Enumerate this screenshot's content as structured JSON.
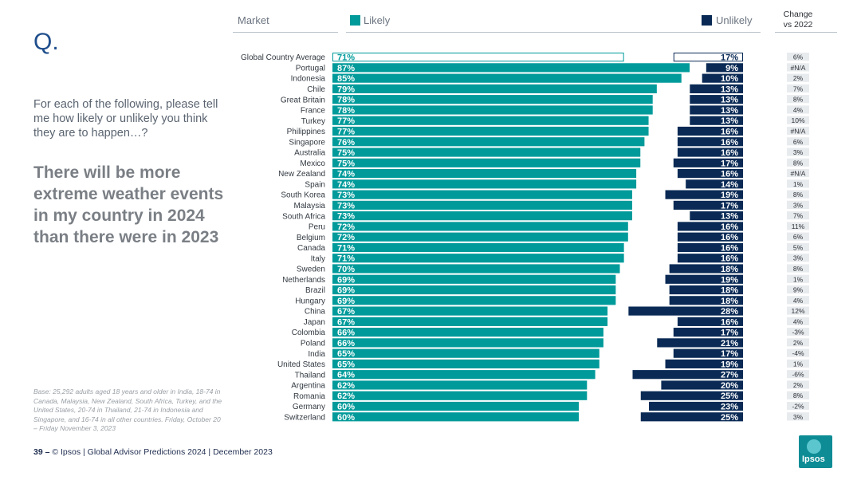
{
  "slide": {
    "q_label": "Q.",
    "intro": "For each of the following, please tell me how likely or unlikely you think they are to happen…?",
    "statement": "There will be more extreme weather events in my country in 2024 than there were in 2023",
    "base_note": "Base: 25,292 adults aged 18 years and older in India, 18-74 in Canada, Malaysia, New Zealand, South Africa, Turkey, and the United States, 20-74 in Thailand, 21-74 in Indonesia and Singapore, and 16-74 in all other countries. Friday, October 20 – Friday November 3, 2023",
    "footer_page": "39 –",
    "footer_text": "© Ipsos | Global Advisor Predictions 2024 | December 2023",
    "logo_text": "Ipsos"
  },
  "colors": {
    "likely": "#009a9a",
    "unlikely": "#0a2a55"
  },
  "chart_data": {
    "type": "bar",
    "headers": {
      "market": "Market",
      "likely": "Likely",
      "unlikely": "Unlikely",
      "change": "Change vs 2022"
    },
    "series": [
      {
        "name": "Likely",
        "values": [
          71,
          87,
          85,
          79,
          78,
          78,
          77,
          77,
          76,
          75,
          75,
          74,
          74,
          73,
          73,
          73,
          72,
          72,
          71,
          71,
          70,
          69,
          69,
          69,
          67,
          67,
          66,
          66,
          65,
          65,
          64,
          62,
          62,
          60,
          60
        ],
        "labels": [
          "71%",
          "87%",
          "85%",
          "79%",
          "78%",
          "78%",
          "77%",
          "77%",
          "76%",
          "75%",
          "75%",
          "74%",
          "74%",
          "73%",
          "73%",
          "73%",
          "72%",
          "72%",
          "71%",
          "71%",
          "70%",
          "69%",
          "69%",
          "69%",
          "67%",
          "67%",
          "66%",
          "66%",
          "65%",
          "65%",
          "64%",
          "62%",
          "62%",
          "60%",
          "60%"
        ]
      },
      {
        "name": "Unlikely",
        "values": [
          17,
          9,
          10,
          13,
          13,
          13,
          13,
          16,
          16,
          16,
          17,
          16,
          14,
          19,
          17,
          13,
          16,
          16,
          16,
          16,
          18,
          19,
          18,
          18,
          28,
          16,
          17,
          21,
          17,
          19,
          27,
          20,
          25,
          23,
          25
        ],
        "labels": [
          "17%",
          "9%",
          "10%",
          "13%",
          "13%",
          "13%",
          "13%",
          "16%",
          "16%",
          "16%",
          "17%",
          "16%",
          "14%",
          "19%",
          "17%",
          "13%",
          "16%",
          "16%",
          "16%",
          "16%",
          "18%",
          "19%",
          "18%",
          "18%",
          "28%",
          "16%",
          "17%",
          "21%",
          "17%",
          "19%",
          "27%",
          "20%",
          "25%",
          "23%",
          "25%"
        ]
      }
    ],
    "categories": [
      "Global Country Average",
      "Portugal",
      "Indonesia",
      "Chile",
      "Great Britain",
      "France",
      "Turkey",
      "Philippines",
      "Singapore",
      "Australia",
      "Mexico",
      "New Zealand",
      "Spain",
      "South Korea",
      "Malaysia",
      "South Africa",
      "Peru",
      "Belgium",
      "Canada",
      "Italy",
      "Sweden",
      "Netherlands",
      "Brazil",
      "Hungary",
      "China",
      "Japan",
      "Colombia",
      "Poland",
      "India",
      "United States",
      "Thailand",
      "Argentina",
      "Romania",
      "Germany",
      "Switzerland"
    ],
    "change_vs_2022": [
      "6%",
      "#N/A",
      "2%",
      "7%",
      "8%",
      "4%",
      "10%",
      "#N/A",
      "6%",
      "3%",
      "8%",
      "#N/A",
      "1%",
      "8%",
      "3%",
      "7%",
      "11%",
      "6%",
      "5%",
      "3%",
      "8%",
      "1%",
      "9%",
      "4%",
      "12%",
      "4%",
      "-3%",
      "2%",
      "-4%",
      "1%",
      "-6%",
      "2%",
      "8%",
      "-2%",
      "3%"
    ],
    "xlim": [
      0,
      100
    ]
  }
}
